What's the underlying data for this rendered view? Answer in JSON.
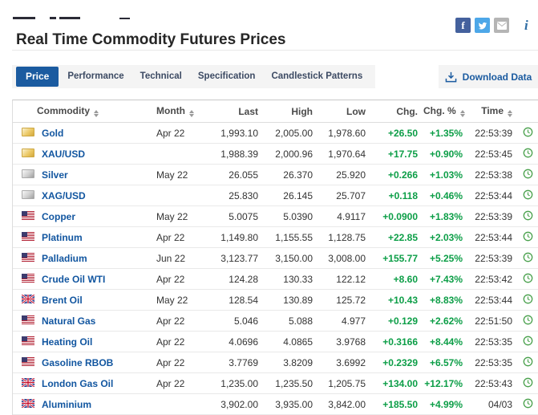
{
  "header": {
    "title": "Real Time Commodity Futures Prices",
    "info_label": "i"
  },
  "tabs": {
    "items": [
      {
        "label": "Price",
        "active": true
      },
      {
        "label": "Performance",
        "active": false
      },
      {
        "label": "Technical",
        "active": false
      },
      {
        "label": "Specification",
        "active": false
      },
      {
        "label": "Candlestick Patterns",
        "active": false
      }
    ],
    "download_label": "Download Data"
  },
  "table": {
    "columns": [
      {
        "label": "Commodity",
        "sortable": true
      },
      {
        "label": "Month",
        "sortable": true
      },
      {
        "label": "Last",
        "sortable": false
      },
      {
        "label": "High",
        "sortable": false
      },
      {
        "label": "Low",
        "sortable": false
      },
      {
        "label": "Chg.",
        "sortable": false
      },
      {
        "label": "Chg. %",
        "sortable": true
      },
      {
        "label": "Time",
        "sortable": true
      }
    ],
    "rows": [
      {
        "icon": "gold-bar-icon",
        "name": "Gold",
        "month": "Apr 22",
        "last": "1,993.10",
        "high": "2,005.00",
        "low": "1,978.60",
        "chg": "+26.50",
        "chg_pct": "+1.35%",
        "time": "22:53:39"
      },
      {
        "icon": "gold-bar-icon",
        "name": "XAU/USD",
        "month": "",
        "last": "1,988.39",
        "high": "2,000.96",
        "low": "1,970.64",
        "chg": "+17.75",
        "chg_pct": "+0.90%",
        "time": "22:53:45"
      },
      {
        "icon": "silver-bar-icon",
        "name": "Silver",
        "month": "May 22",
        "last": "26.055",
        "high": "26.370",
        "low": "25.920",
        "chg": "+0.266",
        "chg_pct": "+1.03%",
        "time": "22:53:38"
      },
      {
        "icon": "silver-bar-icon",
        "name": "XAG/USD",
        "month": "",
        "last": "25.830",
        "high": "26.145",
        "low": "25.707",
        "chg": "+0.118",
        "chg_pct": "+0.46%",
        "time": "22:53:44"
      },
      {
        "icon": "us-flag-icon",
        "name": "Copper",
        "month": "May 22",
        "last": "5.0075",
        "high": "5.0390",
        "low": "4.9117",
        "chg": "+0.0900",
        "chg_pct": "+1.83%",
        "time": "22:53:39"
      },
      {
        "icon": "us-flag-icon",
        "name": "Platinum",
        "month": "Apr 22",
        "last": "1,149.80",
        "high": "1,155.55",
        "low": "1,128.75",
        "chg": "+22.85",
        "chg_pct": "+2.03%",
        "time": "22:53:44"
      },
      {
        "icon": "us-flag-icon",
        "name": "Palladium",
        "month": "Jun 22",
        "last": "3,123.77",
        "high": "3,150.00",
        "low": "3,008.00",
        "chg": "+155.77",
        "chg_pct": "+5.25%",
        "time": "22:53:39"
      },
      {
        "icon": "us-flag-icon",
        "name": "Crude Oil WTI",
        "month": "Apr 22",
        "last": "124.28",
        "high": "130.33",
        "low": "122.12",
        "chg": "+8.60",
        "chg_pct": "+7.43%",
        "time": "22:53:42"
      },
      {
        "icon": "uk-flag-icon",
        "name": "Brent Oil",
        "month": "May 22",
        "last": "128.54",
        "high": "130.89",
        "low": "125.72",
        "chg": "+10.43",
        "chg_pct": "+8.83%",
        "time": "22:53:44"
      },
      {
        "icon": "us-flag-icon",
        "name": "Natural Gas",
        "month": "Apr 22",
        "last": "5.046",
        "high": "5.088",
        "low": "4.977",
        "chg": "+0.129",
        "chg_pct": "+2.62%",
        "time": "22:51:50"
      },
      {
        "icon": "us-flag-icon",
        "name": "Heating Oil",
        "month": "Apr 22",
        "last": "4.0696",
        "high": "4.0865",
        "low": "3.9768",
        "chg": "+0.3166",
        "chg_pct": "+8.44%",
        "time": "22:53:35"
      },
      {
        "icon": "us-flag-icon",
        "name": "Gasoline RBOB",
        "month": "Apr 22",
        "last": "3.7769",
        "high": "3.8209",
        "low": "3.6992",
        "chg": "+0.2329",
        "chg_pct": "+6.57%",
        "time": "22:53:35"
      },
      {
        "icon": "uk-flag-icon",
        "name": "London Gas Oil",
        "month": "Apr 22",
        "last": "1,235.00",
        "high": "1,235.50",
        "low": "1,205.75",
        "chg": "+134.00",
        "chg_pct": "+12.17%",
        "time": "22:53:43"
      },
      {
        "icon": "uk-flag-icon",
        "name": "Aluminium",
        "month": "",
        "last": "3,902.00",
        "high": "3,935.00",
        "low": "3,842.00",
        "chg": "+185.50",
        "chg_pct": "+4.99%",
        "time": "04/03"
      }
    ]
  },
  "colors": {
    "positive": "#0c9e47",
    "link": "#1256a0",
    "active_tab": "#1b5ba0"
  }
}
